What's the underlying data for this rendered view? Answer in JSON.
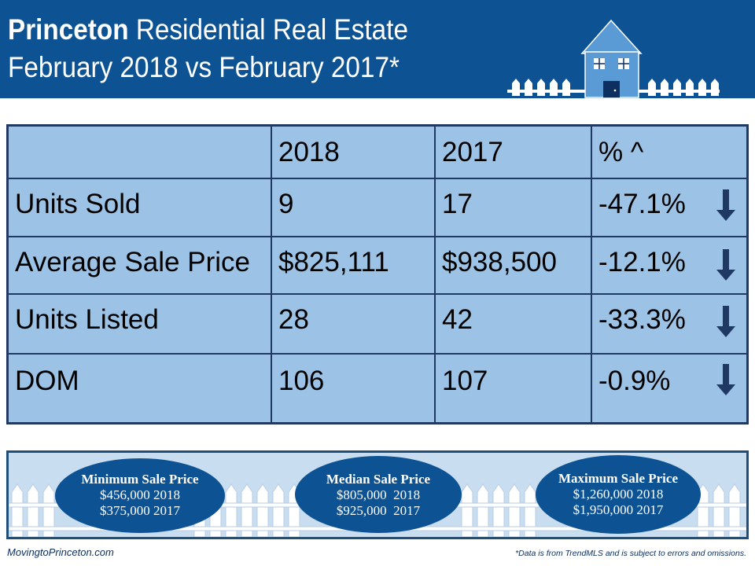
{
  "header": {
    "title_bold": "Princeton",
    "title_rest": " Residential Real Estate",
    "subtitle": "February 2018 vs February 2017*"
  },
  "table": {
    "headers": [
      "",
      "2018",
      "2017",
      "% ^"
    ],
    "rows": [
      {
        "label": "Units Sold",
        "y2018": "9",
        "y2017": "17",
        "pct": "-47.1%",
        "trend": "down"
      },
      {
        "label": "Average Sale Price",
        "y2018": "$825,111",
        "y2017": "$938,500",
        "pct": "-12.1%",
        "trend": "down"
      },
      {
        "label": "Units Listed",
        "y2018": "28",
        "y2017": "42",
        "pct": "-33.3%",
        "trend": "down"
      },
      {
        "label": "DOM",
        "y2018": "106",
        "y2017": "107",
        "pct": "-0.9%",
        "trend": "down"
      }
    ]
  },
  "prices": {
    "min": {
      "title": "Minimum Sale Price",
      "line1": "$456,000 2018",
      "line2": "$375,000 2017"
    },
    "median": {
      "title": "Median Sale Price",
      "line1": "$805,000  2018",
      "line2": "$925,000  2017"
    },
    "max": {
      "title": "Maximum Sale Price",
      "line1": "$1,260,000 2018",
      "line2": "$1,950,000 2017"
    }
  },
  "footer": {
    "site": "MovingtoPrinceton.com",
    "disclaimer": "*Data is from TrendMLS and is subject to errors and omissions."
  },
  "colors": {
    "header_bg": "#0d5394",
    "table_bg": "#9cc3e6",
    "border": "#1f3864",
    "pill_bg": "#0d5394",
    "house": "#5b9bd5"
  },
  "icons": {
    "house": "house-icon",
    "fence": "picket-fence",
    "arrow": "down-arrow-icon"
  }
}
